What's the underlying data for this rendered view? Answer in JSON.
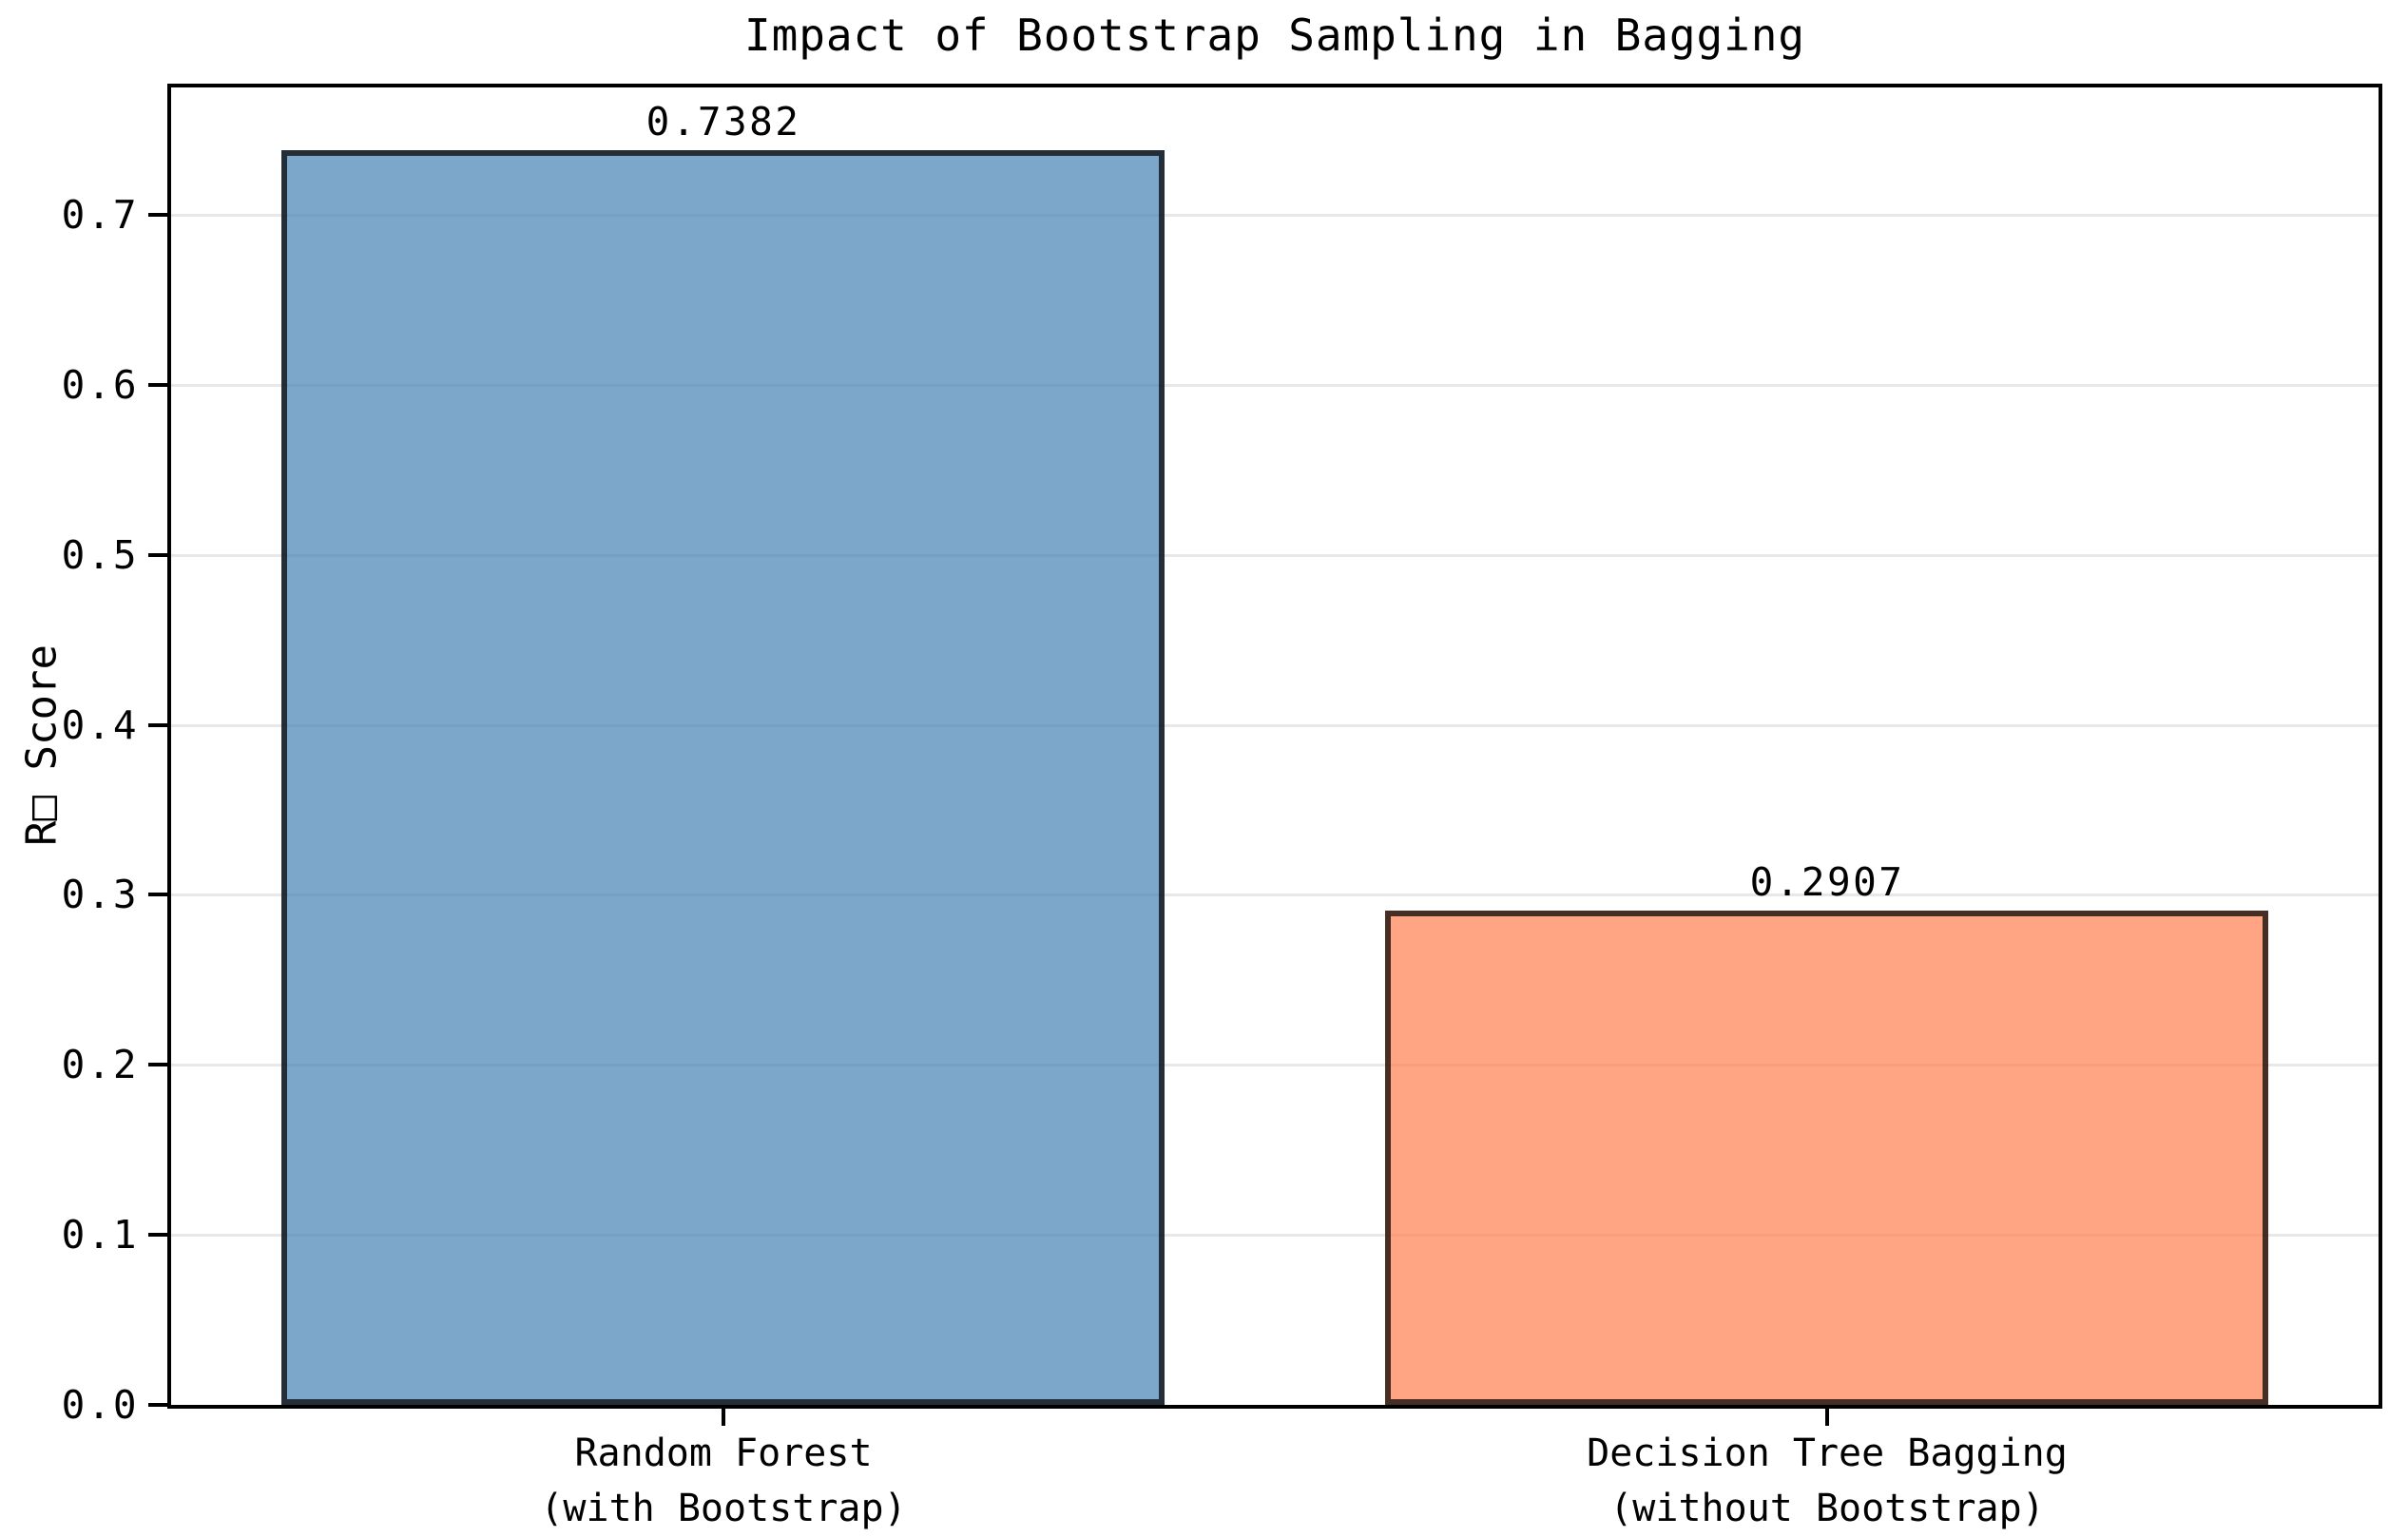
{
  "chart_data": {
    "type": "bar",
    "title": "Impact of Bootstrap Sampling in Bagging",
    "ylabel": "R□ Score",
    "xlabel": "",
    "categories": [
      "Random Forest\n(with Bootstrap)",
      "Decision Tree Bagging\n(without Bootstrap)"
    ],
    "values": [
      0.7382,
      0.2907
    ],
    "bar_value_labels": [
      "0.7382",
      "0.2907"
    ],
    "bar_fill_colors": [
      "#4682B4",
      "#FF7F50"
    ],
    "bar_fill_alpha": 0.7,
    "bar_rendered_colors": [
      "#7BA6CB",
      "#FFA584"
    ],
    "bar_edge_color": "#000000",
    "bar_edge_alpha": 0.72,
    "bar_width_frac": 0.8,
    "ylim": [
      0,
      0.775
    ],
    "yticks": {
      "values": [
        0.0,
        0.1,
        0.2,
        0.3,
        0.4,
        0.5,
        0.6,
        0.7
      ],
      "labels": [
        "0.0",
        "0.1",
        "0.2",
        "0.3",
        "0.4",
        "0.5",
        "0.6",
        "0.7"
      ]
    },
    "grid": "horizontal",
    "grid_color": "#E8E8E8",
    "spine_color": "#000000",
    "text_color": "#000000",
    "background": "#FFFFFF",
    "legend": "none"
  }
}
